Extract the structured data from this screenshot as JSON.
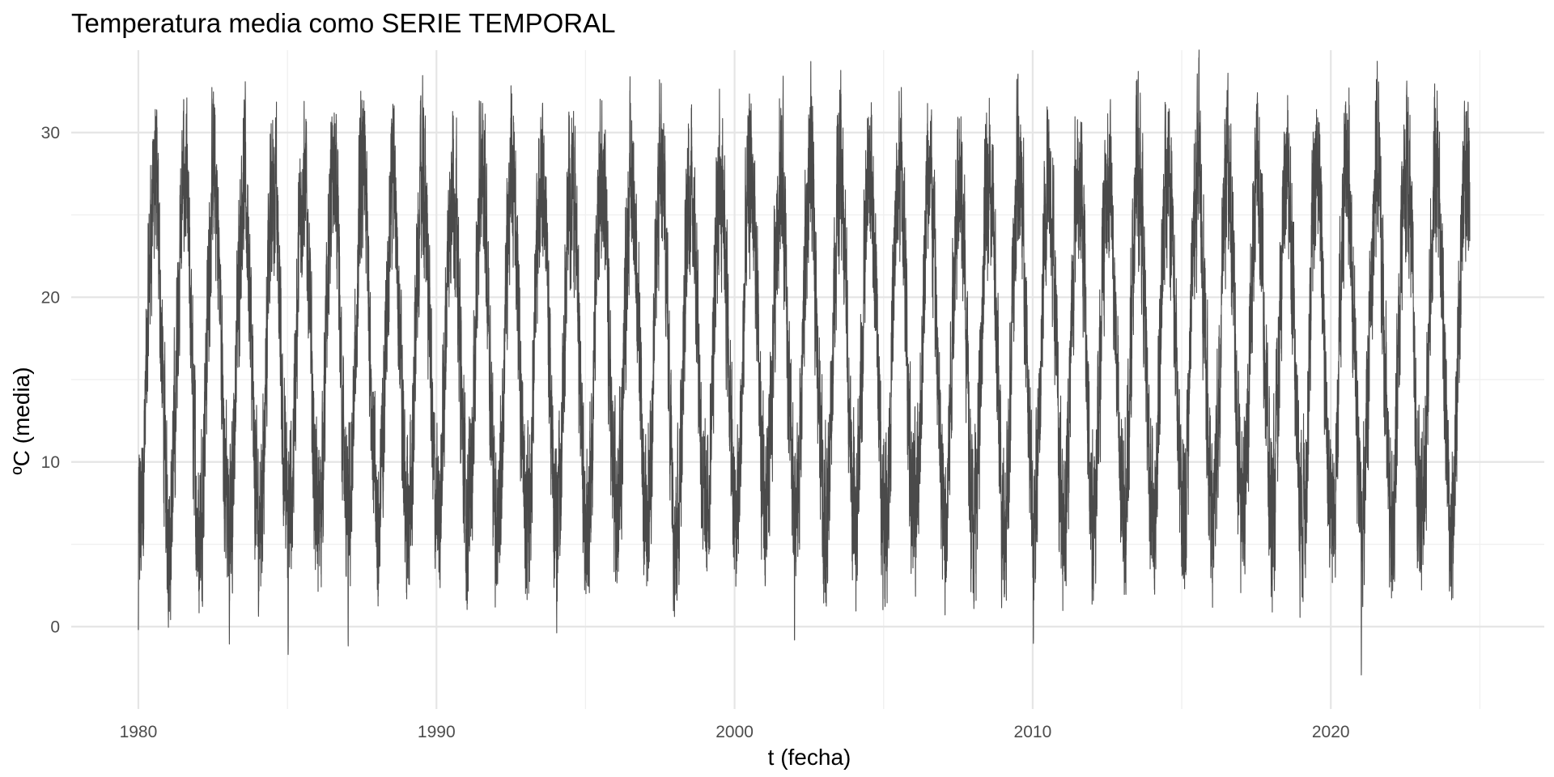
{
  "chart_data": {
    "type": "line",
    "title": "Temperatura media como SERIE TEMPORAL",
    "xlabel": "t (fecha)",
    "ylabel": "ºC (media)",
    "xlim": [
      "1977-10-01",
      "2027-03-01"
    ],
    "ylim": [
      -5,
      35
    ],
    "x_ticks": [
      1980,
      1990,
      2000,
      2010,
      2020
    ],
    "y_ticks": [
      0,
      10,
      20,
      30
    ],
    "grid": true,
    "legend": "none",
    "line_color": "#4a4a4a",
    "series": [
      {
        "x_start": "1980-01-01",
        "x_end": "2024-08-31",
        "frequency": "daily",
        "pattern": "annual cycle",
        "approx_annual_min": -1,
        "approx_annual_max": 31,
        "extremes": [
          {
            "x": "1980-01-01",
            "y": -0.2
          },
          {
            "x": "1980-07-20",
            "y": 30.4
          },
          {
            "x": "1983-01-20",
            "y": -1.5
          },
          {
            "x": "1985-01-10",
            "y": -2.0
          },
          {
            "x": "1987-01-15",
            "y": -1.6
          },
          {
            "x": "1991-07-20",
            "y": 32.0
          },
          {
            "x": "1993-07-25",
            "y": 32.4
          },
          {
            "x": "1995-07-20",
            "y": 32.2
          },
          {
            "x": "2002-01-05",
            "y": -1.5
          },
          {
            "x": "2010-01-10",
            "y": -1.8
          },
          {
            "x": "2012-08-10",
            "y": 32.8
          },
          {
            "x": "2017-07-15",
            "y": 32.7
          },
          {
            "x": "2021-01-10",
            "y": -3.4
          },
          {
            "x": "2021-08-10",
            "y": 33.5
          },
          {
            "x": "2022-07-20",
            "y": 33.4
          },
          {
            "x": "2024-08-10",
            "y": 32.6
          }
        ]
      }
    ]
  }
}
